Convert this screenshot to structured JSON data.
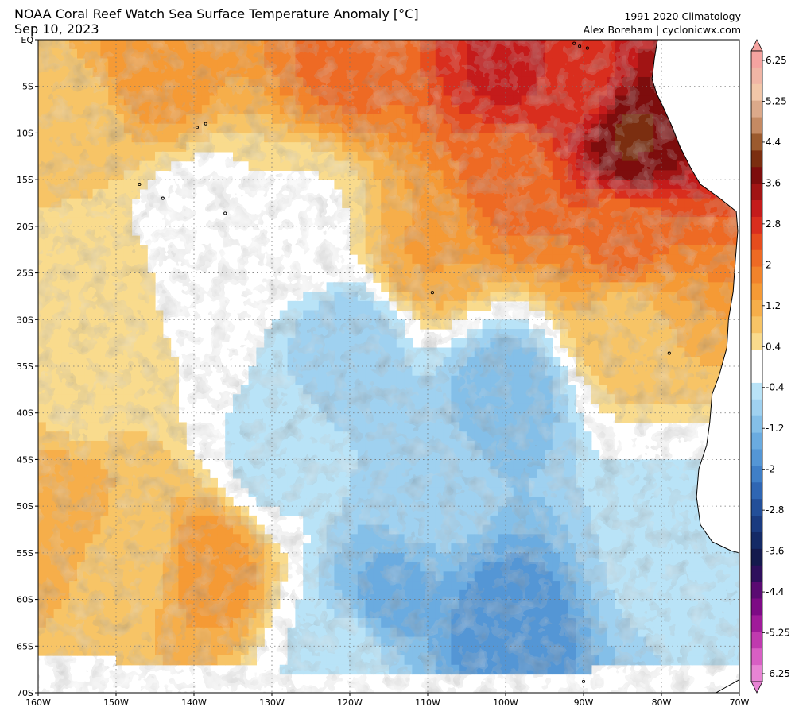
{
  "header": {
    "title": "NOAA Coral Reef Watch Sea Surface Temperature Anomaly [°C]",
    "date": "Sep 10, 2023",
    "climatology": "1991-2020 Climatology",
    "credit": "Alex Boreham | cyclonicwx.com"
  },
  "map": {
    "lon_range": [
      -160,
      -70
    ],
    "lat_range": [
      -70,
      0
    ],
    "lon_ticks": [
      {
        "value": -160,
        "label": "160W"
      },
      {
        "value": -150,
        "label": "150W"
      },
      {
        "value": -140,
        "label": "140W"
      },
      {
        "value": -130,
        "label": "130W"
      },
      {
        "value": -120,
        "label": "120W"
      },
      {
        "value": -110,
        "label": "110W"
      },
      {
        "value": -100,
        "label": "100W"
      },
      {
        "value": -90,
        "label": "90W"
      },
      {
        "value": -80,
        "label": "80W"
      },
      {
        "value": -70,
        "label": "70W"
      }
    ],
    "lat_ticks": [
      {
        "value": 0,
        "label": "EQ"
      },
      {
        "value": -5,
        "label": "5S"
      },
      {
        "value": -10,
        "label": "10S"
      },
      {
        "value": -15,
        "label": "15S"
      },
      {
        "value": -20,
        "label": "20S"
      },
      {
        "value": -25,
        "label": "25S"
      },
      {
        "value": -30,
        "label": "30S"
      },
      {
        "value": -35,
        "label": "35S"
      },
      {
        "value": -40,
        "label": "40S"
      },
      {
        "value": -45,
        "label": "45S"
      },
      {
        "value": -50,
        "label": "50S"
      },
      {
        "value": -55,
        "label": "55S"
      },
      {
        "value": -60,
        "label": "60S"
      },
      {
        "value": -65,
        "label": "65S"
      },
      {
        "value": -70,
        "label": "70S"
      }
    ],
    "gridlines": true,
    "gridline_style": "dotted",
    "anomaly_regions": [
      {
        "lon": -90,
        "lat": -5,
        "value": 3.0
      },
      {
        "lon": -84,
        "lat": -10,
        "value": 4.2
      },
      {
        "lon": -100,
        "lat": -3,
        "value": 3.2
      },
      {
        "lon": -120,
        "lat": -2,
        "value": 2.2
      },
      {
        "lon": -145,
        "lat": -3,
        "value": 1.6
      },
      {
        "lon": -155,
        "lat": -10,
        "value": 0.8
      },
      {
        "lon": -100,
        "lat": -15,
        "value": 2.2
      },
      {
        "lon": -85,
        "lat": -22,
        "value": 2.2
      },
      {
        "lon": -110,
        "lat": -22,
        "value": 1.4
      },
      {
        "lon": -125,
        "lat": -19,
        "value": 0.3
      },
      {
        "lon": -140,
        "lat": -20,
        "value": 0.0
      },
      {
        "lon": -150,
        "lat": -25,
        "value": 0.4
      },
      {
        "lon": -85,
        "lat": -30,
        "value": 0.9
      },
      {
        "lon": -155,
        "lat": -38,
        "value": 0.6
      },
      {
        "lon": -120,
        "lat": -33,
        "value": -1.0
      },
      {
        "lon": -100,
        "lat": -38,
        "value": -1.3
      },
      {
        "lon": -110,
        "lat": -48,
        "value": -0.8
      },
      {
        "lon": -130,
        "lat": -45,
        "value": -0.5
      },
      {
        "lon": -157,
        "lat": -50,
        "value": 1.3
      },
      {
        "lon": -148,
        "lat": -55,
        "value": 0.8
      },
      {
        "lon": -138,
        "lat": -56,
        "value": 1.6
      },
      {
        "lon": -115,
        "lat": -60,
        "value": -1.5
      },
      {
        "lon": -100,
        "lat": -63,
        "value": -2.0
      },
      {
        "lon": -80,
        "lat": -55,
        "value": -0.6
      },
      {
        "lon": -120,
        "lat": -66,
        "value": -0.5
      }
    ]
  },
  "colorbar": {
    "labels": [
      "6.25",
      "5.25",
      "4.4",
      "3.6",
      "2.8",
      "2",
      "1.2",
      "0.4",
      "-0.4",
      "-1.2",
      "-2",
      "-2.8",
      "-3.6",
      "-4.4",
      "-5.25",
      "-6.25"
    ],
    "colors": [
      "#f5a3a0",
      "#f0b5a5",
      "#f2c6a8",
      "#dca98a",
      "#c58a63",
      "#9b5a2e",
      "#7b2e10",
      "#7d0d0d",
      "#a11414",
      "#c41b1b",
      "#d92e1e",
      "#e64d1e",
      "#ee6a24",
      "#f2832b",
      "#f59a35",
      "#f6ae4a",
      "#f7c466",
      "#f9db8d",
      "#ffffff",
      "#ffffff",
      "#b9e3f7",
      "#9fd1f0",
      "#84bfe8",
      "#6aabe0",
      "#5496d5",
      "#3f7fc7",
      "#2f66b3",
      "#234f99",
      "#1a3b80",
      "#142a66",
      "#141a4d",
      "#2e0f5c",
      "#5a0a72",
      "#7d0a85",
      "#a01b9a",
      "#c03aaf",
      "#d85fc4",
      "#e884d4"
    ]
  }
}
